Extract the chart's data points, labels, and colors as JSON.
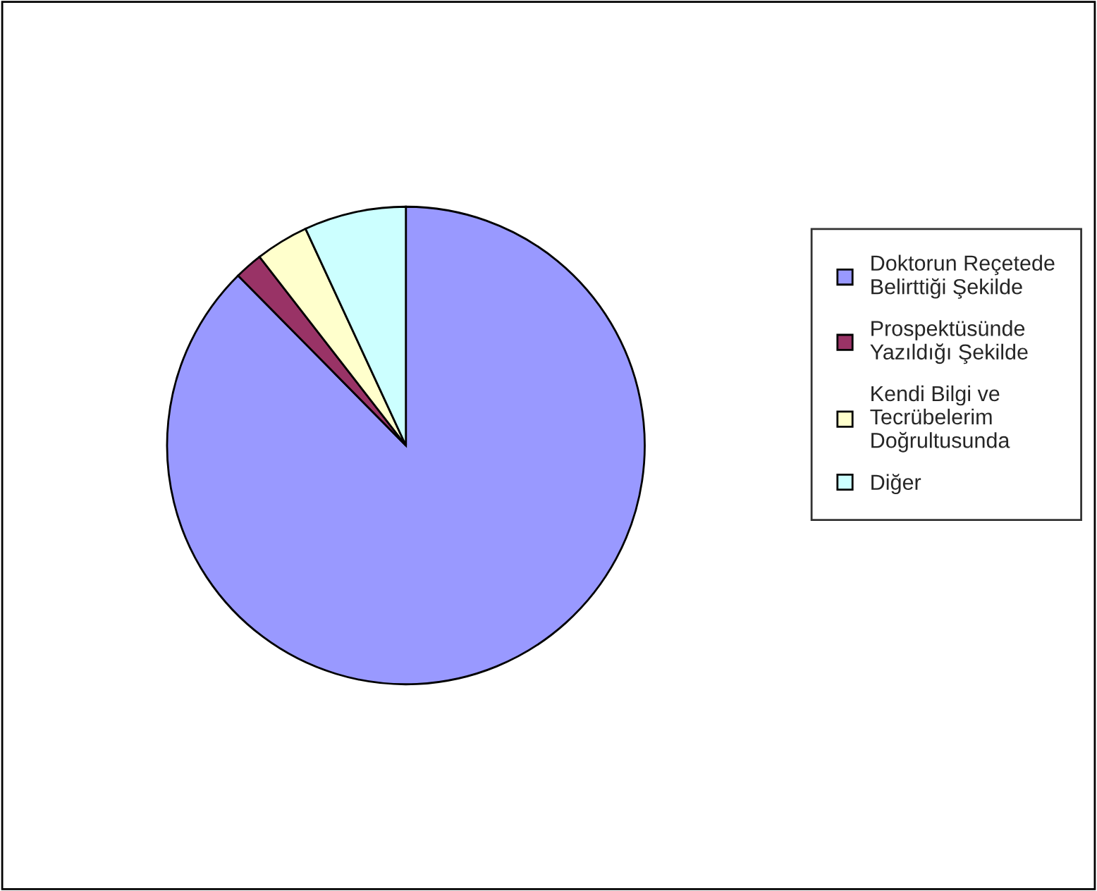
{
  "chart_data": {
    "type": "pie",
    "categories": [
      "Doktorun Reçetede\nBelirttiği Şekilde",
      "Prospektüsünde\nYazıldığı Şekilde",
      "Kendi Bilgi ve\nTecrübelerim\nDoğrultusunda",
      "Diğer"
    ],
    "values": [
      87.6,
      1.9,
      3.6,
      6.9
    ],
    "colors": [
      "#9999ff",
      "#993366",
      "#ffffcc",
      "#ccffff"
    ],
    "legend": "right"
  }
}
